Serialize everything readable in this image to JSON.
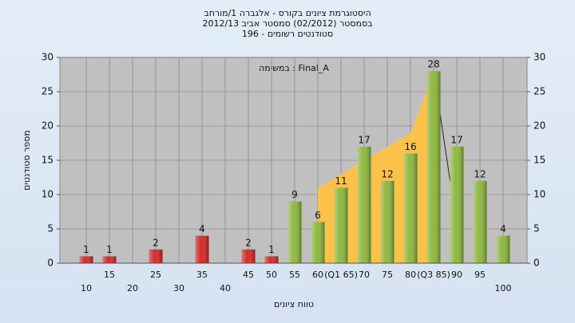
{
  "chart_data": {
    "type": "bar",
    "title": [
      "היסטוגרמת ציונים בקורס - אלגברה 1/מורחב",
      "בסמסטר  (02/2012)  סמסטר אביב  2012/13",
      "סטודנטים רשומים - 196"
    ],
    "annotation": "במשימה : Final_A",
    "xlabel": "טווח ציונים",
    "ylabel": "מספר סטודנטים",
    "categories": [
      "10",
      "15",
      "20",
      "25",
      "30",
      "35",
      "40",
      "45",
      "50",
      "55",
      "60",
      "(Q1 65)",
      "70",
      "75",
      "80",
      "(Q3 85)",
      "90",
      "95",
      "100"
    ],
    "values": [
      1,
      1,
      null,
      2,
      null,
      4,
      null,
      2,
      1,
      9,
      6,
      11,
      17,
      12,
      16,
      28,
      17,
      12,
      4
    ],
    "colors": [
      "#d42a2a",
      "#d42a2a",
      "#d42a2a",
      "#d42a2a",
      "#d42a2a",
      "#d42a2a",
      "#d42a2a",
      "#d42a2a",
      "#d42a2a",
      "#8fb840",
      "#8fb840",
      "#8fb840",
      "#8fb840",
      "#8fb840",
      "#8fb840",
      "#8fb840",
      "#8fb840",
      "#8fb840",
      "#8fb840"
    ],
    "quartile_area": {
      "color": "#fbc24a",
      "x": [
        60,
        70,
        80,
        85
      ],
      "values": [
        11,
        15,
        19,
        28
      ]
    },
    "trend_line": {
      "color": "#222222",
      "x": [
        85,
        89
      ],
      "values": [
        28,
        10
      ]
    },
    "ylim": [
      0,
      30
    ],
    "yticks": [
      0,
      5,
      10,
      15,
      20,
      25,
      30
    ],
    "y2lim": [
      0,
      30
    ],
    "y2ticks": [
      0,
      5,
      10,
      15,
      20,
      25,
      30
    ],
    "grid": true
  }
}
